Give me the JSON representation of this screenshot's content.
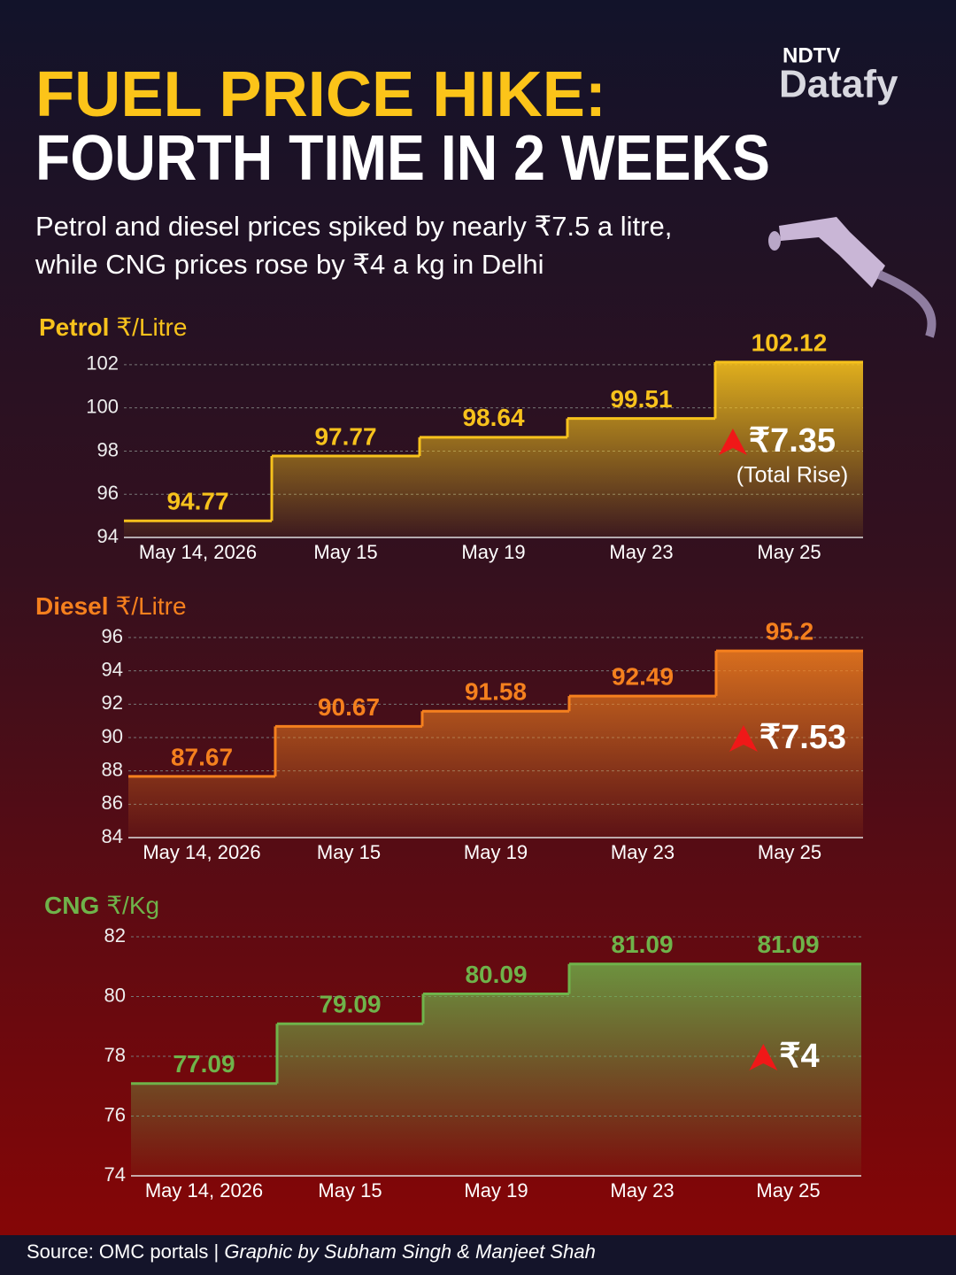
{
  "header": {
    "title_line1": "FUEL PRICE HIKE:",
    "title_line2": "FOURTH TIME IN 2 WEEKS",
    "subtitle_line1": "Petrol and diesel prices spiked by nearly ₹7.5 a litre,",
    "subtitle_line2": "while CNG prices rose by ₹4 a kg in Delhi",
    "logo_top": "NDTV",
    "logo_bottom": "Datafy"
  },
  "chart_data": [
    {
      "type": "step",
      "title": "Petrol",
      "unit": "₹/Litre",
      "categories": [
        "May 14, 2026",
        "May 15",
        "May 19",
        "May 23",
        "May 25"
      ],
      "values": [
        94.77,
        97.77,
        98.64,
        99.51,
        102.12
      ],
      "color": "#f7c21c",
      "ylim": [
        94,
        102.2
      ],
      "yticks": [
        94,
        96,
        98,
        100,
        102
      ],
      "grid": true,
      "annotation": "₹7.35",
      "annotation_note": "(Total Rise)"
    },
    {
      "type": "step",
      "title": "Diesel",
      "unit": "₹/Litre",
      "categories": [
        "May 14, 2026",
        "May 15",
        "May 19",
        "May 23",
        "May 25"
      ],
      "values": [
        87.67,
        90.67,
        91.58,
        92.49,
        95.2
      ],
      "color": "#f5801e",
      "ylim": [
        84,
        96
      ],
      "yticks": [
        84,
        86,
        88,
        90,
        92,
        94,
        96
      ],
      "grid": true,
      "annotation": "₹7.53"
    },
    {
      "type": "step",
      "title": "CNG",
      "unit": "₹/Kg",
      "categories": [
        "May 14, 2026",
        "May 15",
        "May 19",
        "May 23",
        "May 25"
      ],
      "values": [
        77.09,
        79.09,
        80.09,
        81.09,
        81.09
      ],
      "color": "#6fb34a",
      "ylim": [
        74,
        82
      ],
      "yticks": [
        74,
        76,
        78,
        80,
        82
      ],
      "grid": true,
      "annotation": "₹4"
    }
  ],
  "footer": {
    "source": "Source: OMC portals | ",
    "credit": "Graphic by Subham Singh & Manjeet Shah"
  }
}
